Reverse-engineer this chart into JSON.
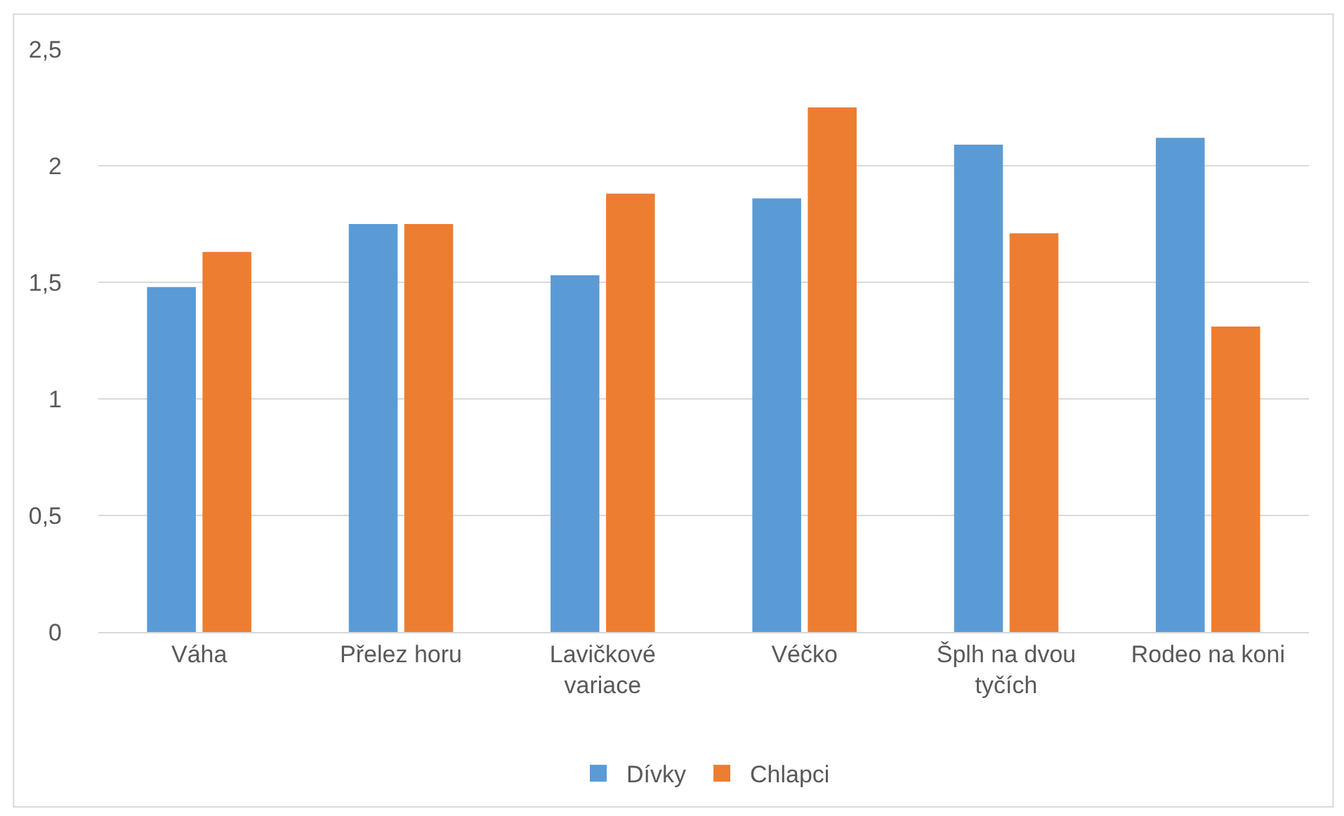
{
  "chart_data": {
    "type": "bar",
    "categories": [
      "Váha",
      "Přelez horu",
      "Lavičkové variace",
      "Véčko",
      "Šplh na dvou tyčích",
      "Rodeo na koni"
    ],
    "series": [
      {
        "name": "Dívky",
        "color": "#5b9bd5",
        "values": [
          1.48,
          1.75,
          1.53,
          1.86,
          2.09,
          2.12
        ]
      },
      {
        "name": "Chlapci",
        "color": "#ed7d31",
        "values": [
          1.63,
          1.75,
          1.88,
          2.25,
          1.71,
          1.31
        ]
      }
    ],
    "ylim": [
      0,
      2.5
    ],
    "yticks": [
      0,
      {
        "value": 0.5,
        "label": "0,5"
      },
      1,
      {
        "value": 1.5,
        "label": "1,5"
      },
      2,
      {
        "value": 2.5,
        "label": "2,5"
      }
    ],
    "grid": "y",
    "legend": "bottom"
  }
}
